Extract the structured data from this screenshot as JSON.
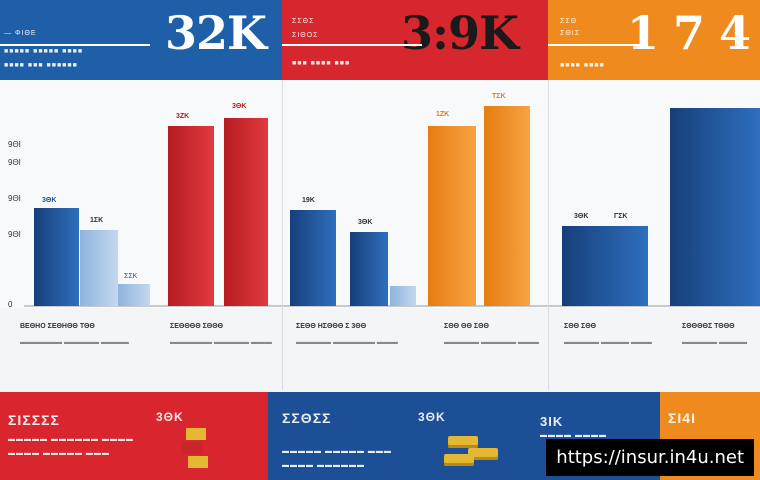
{
  "panels": [
    {
      "big": "32K",
      "line1": "— ΦΙΘΕ",
      "line2": "■■■■■ ■■■■■ ■■■■",
      "line3": "■■■■ ■■■ ■■■■■■"
    },
    {
      "big": "3:9K",
      "line1": "ΣΣΘΣ",
      "line2": "ΣΙΘΟΣ",
      "line3": "■■■ ■■■■ ■■■"
    },
    {
      "big": "1 7 4",
      "line1": "ΣΣΘ",
      "line2": "ΣΘΙΣ",
      "line3": "■■■■ ■■■■"
    }
  ],
  "chart_data": {
    "type": "bar",
    "y_ticks": [
      "0",
      "9ΘΙ",
      "9ΘΙ",
      "9ΘΙ",
      "9ΘΙ"
    ],
    "bar_labels": [
      "3ΘΚ",
      "1ΣΚ",
      "ΣΣΚ",
      "3ΖΚ",
      "3ΘΚ",
      "19Κ",
      "3ΘΚ",
      "1ΖΚ",
      "ΤΣΚ",
      "3ΘΚ",
      "ΓΣΚ"
    ],
    "captions": [
      "ΒΕΘΗΟ ΣΕΘΗΘΘ ΤΘΘ",
      "ΣΕΘΘΘΘ ΣΘΘΘ",
      "ΣΕΘΘ ΗΣΘΘΘ Σ 3ΘΘ",
      "ΣΘΘ ΘΘ ΣΘΘ",
      "ΣΘΘ ΣΘΘ",
      "ΣΘΘΘΘΣ ΤΘΘΘ"
    ]
  },
  "bottom": {
    "b1_title": "ΣΙΣΣΣΣ",
    "b1_tag": "3ΘΚ",
    "b2_title": "ΣΣΘΣΣ",
    "b2_tag": "3ΘΚ",
    "b3_title": "3ΙΚ",
    "b4_title": "ΣΙ4Ι",
    "watermark": "https://insur.in4u.net"
  }
}
